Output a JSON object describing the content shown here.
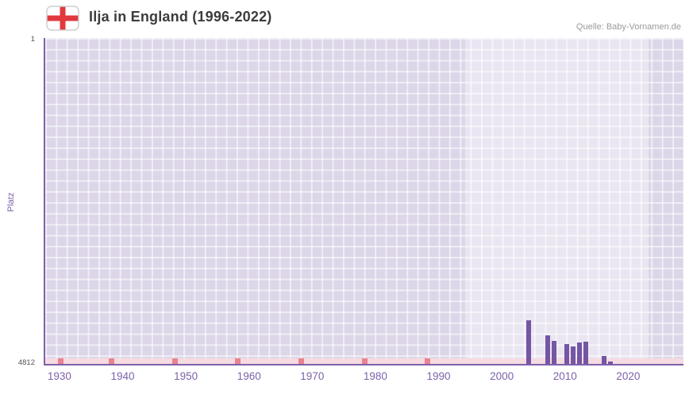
{
  "header": {
    "title": "Ilja in England (1996-2022)",
    "source": "Quelle: Baby-Vornamen.de",
    "flag_icon": "england-flag-icon"
  },
  "chart_data": {
    "type": "bar",
    "title": "Ilja in England (1996-2022)",
    "xlabel": "",
    "ylabel": "Platz",
    "grid": true,
    "legend": null,
    "y_axis": {
      "min": 1,
      "max": 4812,
      "inverted": true,
      "top_label": "1",
      "bottom_label": "4812"
    },
    "x_axis": {
      "min": 1927.5,
      "max": 2028.5,
      "ticks": [
        1930,
        1940,
        1950,
        1960,
        1970,
        1980,
        1990,
        2000,
        2010,
        2020
      ]
    },
    "highlight_band": {
      "from": 1994,
      "to": 2023
    },
    "series": [
      {
        "name": "Platz",
        "points": [
          {
            "year": 2004,
            "rank": 4170
          },
          {
            "year": 2007,
            "rank": 4390
          },
          {
            "year": 2008,
            "rank": 4470
          },
          {
            "year": 2010,
            "rank": 4520
          },
          {
            "year": 2011,
            "rank": 4560
          },
          {
            "year": 2012,
            "rank": 4500
          },
          {
            "year": 2013,
            "rank": 4480
          },
          {
            "year": 2016,
            "rank": 4700
          },
          {
            "year": 2017,
            "rank": 4780
          }
        ]
      }
    ],
    "no_data_marker_years": [
      1930,
      1938,
      1948,
      1958,
      1968,
      1978,
      1988
    ],
    "colors": {
      "bar": "#7456a3",
      "axis": "#7e61ab",
      "tick_label": "#7e61ab",
      "plot_bg": "#dcd6e8",
      "band": "#e9e4f2",
      "stripe": "#f6dbe1",
      "marker": "#e8838f",
      "title_text": "#3c3c3c",
      "source_text": "#9a9a9a"
    }
  }
}
